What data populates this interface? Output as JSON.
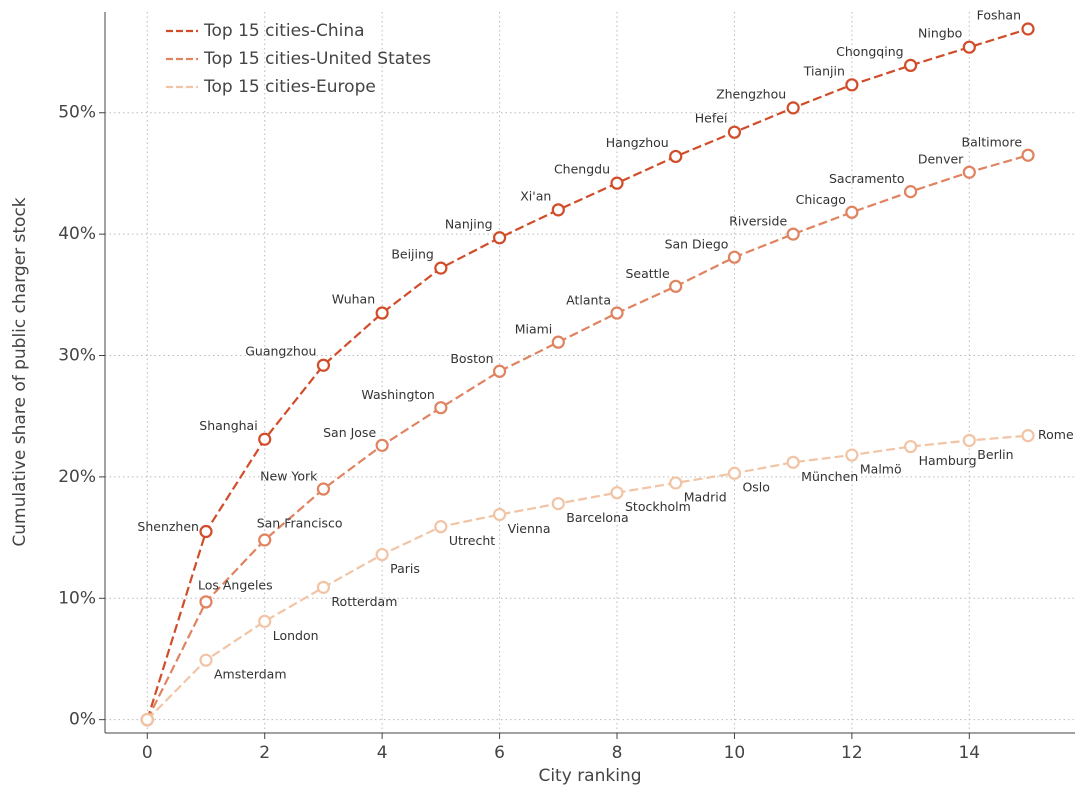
{
  "chart_data": {
    "type": "line",
    "x_label": "City ranking",
    "y_label": "Cumulative share of public charger stock",
    "x": [
      0,
      1,
      2,
      3,
      4,
      5,
      6,
      7,
      8,
      9,
      10,
      11,
      12,
      13,
      14,
      15
    ],
    "xlim": [
      -0.72,
      15.8
    ],
    "xticks": [
      0,
      2,
      4,
      6,
      8,
      10,
      12,
      14
    ],
    "ylim": [
      -1.1,
      58.3
    ],
    "yticks": [
      {
        "value": 0,
        "label": "0%"
      },
      {
        "value": 10,
        "label": "10%"
      },
      {
        "value": 20,
        "label": "20%"
      },
      {
        "value": 30,
        "label": "30%"
      },
      {
        "value": 40,
        "label": "40%"
      },
      {
        "value": 50,
        "label": "50%"
      }
    ],
    "grid": true,
    "legend": "upper left",
    "series": [
      {
        "name": "Top 15 cities-China",
        "color": "#d14d2a",
        "values": [
          0,
          15.5,
          23.1,
          29.2,
          33.5,
          37.2,
          39.7,
          42.0,
          44.2,
          46.4,
          48.4,
          50.4,
          52.3,
          53.9,
          55.4,
          56.9
        ],
        "labels": [
          null,
          "Shenzhen",
          "Shanghai",
          "Guangzhou",
          "Wuhan",
          "Beijing",
          "Nanjing",
          "Xi'an",
          "Chengdu",
          "Hangzhou",
          "Hefei",
          "Zhengzhou",
          "Tianjin",
          "Chongqing",
          "Ningbo",
          "Foshan"
        ]
      },
      {
        "name": "Top 15 cities-United States",
        "color": "#e08360",
        "values": [
          0,
          9.7,
          14.8,
          19.0,
          22.6,
          25.7,
          28.7,
          31.1,
          33.5,
          35.7,
          38.1,
          40.0,
          41.8,
          43.5,
          45.1,
          46.5
        ],
        "labels": [
          null,
          "Los Angeles",
          "San Francisco",
          "New York",
          "San Jose",
          "Washington",
          "Boston",
          "Miami",
          "Atlanta",
          "Seattle",
          "San Diego",
          "Riverside",
          "Chicago",
          "Sacramento",
          "Denver",
          "Baltimore"
        ]
      },
      {
        "name": "Top 15 cities-Europe",
        "color": "#f2c4a6",
        "values": [
          0,
          4.9,
          8.1,
          10.9,
          13.6,
          15.9,
          16.9,
          17.8,
          18.7,
          19.5,
          20.3,
          21.2,
          21.8,
          22.5,
          23.0,
          23.4
        ],
        "labels": [
          null,
          "Amsterdam",
          "London",
          "Rotterdam",
          "Paris",
          "Utrecht",
          "Vienna",
          "Barcelona",
          "Stockholm",
          "Madrid",
          "Oslo",
          "München",
          "Malmö",
          "Hamburg",
          "Berlin",
          "Rome"
        ]
      }
    ]
  }
}
